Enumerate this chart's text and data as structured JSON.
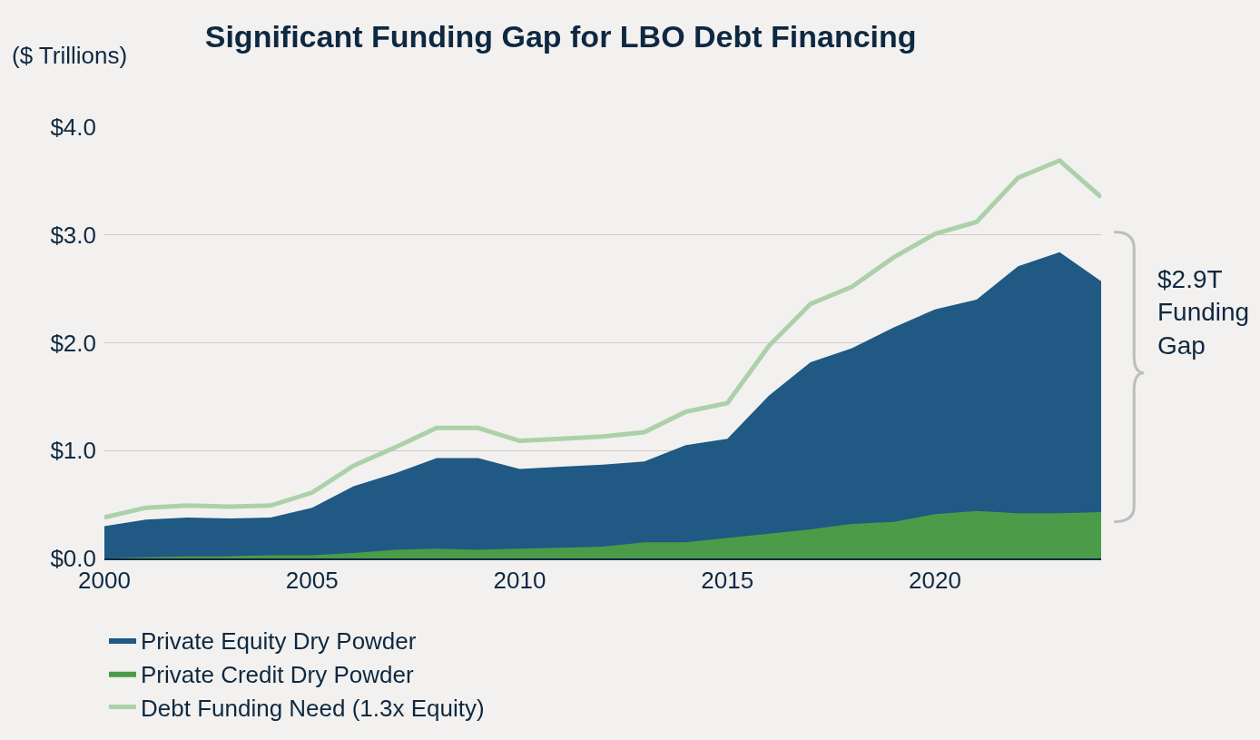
{
  "chart_data": {
    "type": "area",
    "title": "Significant Funding Gap for LBO Debt Financing",
    "ylabel": "($ Trillions)",
    "x": [
      2000,
      2001,
      2002,
      2003,
      2004,
      2005,
      2006,
      2007,
      2008,
      2009,
      2010,
      2011,
      2012,
      2013,
      2014,
      2015,
      2016,
      2017,
      2018,
      2019,
      2020,
      2021,
      2022,
      2023,
      2024
    ],
    "series": [
      {
        "name": "Private Equity Dry Powder",
        "color": "#1f5984",
        "values": [
          0.3,
          0.36,
          0.38,
          0.37,
          0.38,
          0.47,
          0.67,
          0.79,
          0.93,
          0.93,
          0.83,
          0.85,
          0.87,
          0.9,
          1.05,
          1.11,
          1.51,
          1.82,
          1.95,
          2.14,
          2.31,
          2.4,
          2.71,
          2.84,
          2.57
        ]
      },
      {
        "name": "Private Credit Dry Powder",
        "color": "#4a9c48",
        "values": [
          0.0,
          0.01,
          0.02,
          0.02,
          0.03,
          0.03,
          0.05,
          0.08,
          0.09,
          0.08,
          0.09,
          0.1,
          0.11,
          0.15,
          0.15,
          0.19,
          0.23,
          0.27,
          0.32,
          0.34,
          0.41,
          0.44,
          0.42,
          0.42,
          0.43
        ]
      },
      {
        "name": "Debt Funding Need (1.3x Equity)",
        "type": "line",
        "color": "#acd1aa",
        "values": [
          0.38,
          0.47,
          0.49,
          0.48,
          0.49,
          0.61,
          0.86,
          1.03,
          1.21,
          1.21,
          1.09,
          1.11,
          1.13,
          1.17,
          1.36,
          1.44,
          1.97,
          2.36,
          2.52,
          2.79,
          3.01,
          3.12,
          3.53,
          3.69,
          3.35
        ]
      }
    ],
    "annotations": [
      "$2.9T\nFunding\nGap"
    ],
    "xlim": [
      2000,
      2024
    ],
    "xticks": [
      2000,
      2005,
      2010,
      2015,
      2020
    ],
    "ylim": [
      0,
      4
    ],
    "yticks": [
      {
        "value": 0,
        "label": "$0.0"
      },
      {
        "value": 1,
        "label": "$1.0"
      },
      {
        "value": 2,
        "label": "$2.0"
      },
      {
        "value": 3,
        "label": "$3.0"
      },
      {
        "value": 4,
        "label": "$4.0"
      }
    ],
    "grid": "y",
    "legend": "bottom"
  }
}
